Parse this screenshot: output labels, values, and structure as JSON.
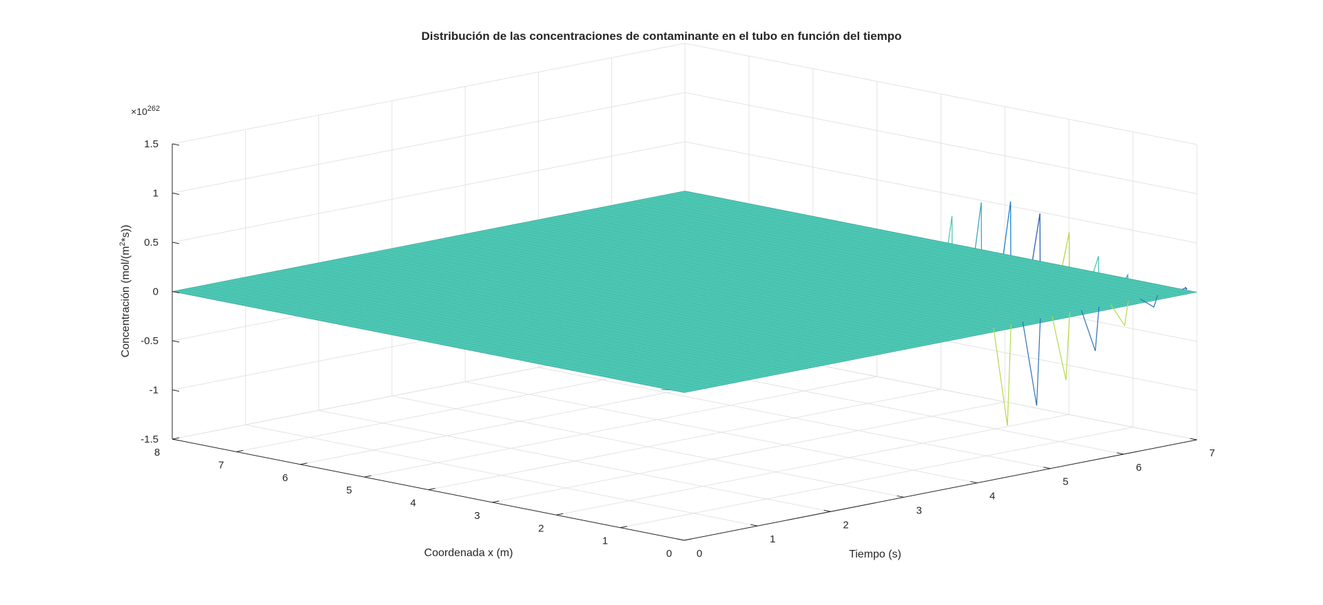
{
  "chart_data": {
    "type": "surface-3d",
    "title": "Distribución de las concentraciones de contaminante en el tubo en función del tiempo",
    "xlabel": "Coordenada x (m)",
    "ylabel": "Tiempo (s)",
    "zlabel_prefix": "Concentración (mol/(m",
    "zlabel_sup": "2",
    "zlabel_suffix": "*s))",
    "z_exponent_base": "×10",
    "z_exponent": "262",
    "x_range": [
      0,
      8
    ],
    "y_range": [
      0,
      7
    ],
    "z_range": [
      -1.5,
      1.5
    ],
    "x_ticks": [
      "0",
      "1",
      "2",
      "3",
      "4",
      "5",
      "6",
      "7",
      "8"
    ],
    "y_ticks": [
      "0",
      "1",
      "2",
      "3",
      "4",
      "5",
      "6",
      "7"
    ],
    "z_ticks": [
      "-1.5",
      "-1",
      "-0.5",
      "0",
      "0.5",
      "1",
      "1.5"
    ],
    "grid": true,
    "surface_color": "#4ec9b5",
    "edge_color": "#2e9e8e",
    "spike_colors": [
      "#3aa6c0",
      "#1f7fc8",
      "#2a5fb0",
      "#b5d94a",
      "#4ec9b5"
    ],
    "surface_plateau_z": 0,
    "oscillation_x_max": 8,
    "oscillation_envelope": {
      "time": [
        0.15,
        0.5,
        0.9,
        1.3,
        1.7,
        2.1,
        2.5,
        2.9,
        3.3,
        3.7,
        4.1,
        4.5,
        4.9,
        5.3,
        5.7,
        6.1,
        6.5,
        6.9
      ],
      "peak": [
        0.05,
        0.07,
        0.1,
        0.15,
        0.22,
        0.35,
        0.55,
        0.8,
        1.05,
        1.25,
        1.33,
        1.28,
        1.1,
        0.85,
        0.55,
        0.3,
        0.14,
        0.05
      ]
    }
  }
}
